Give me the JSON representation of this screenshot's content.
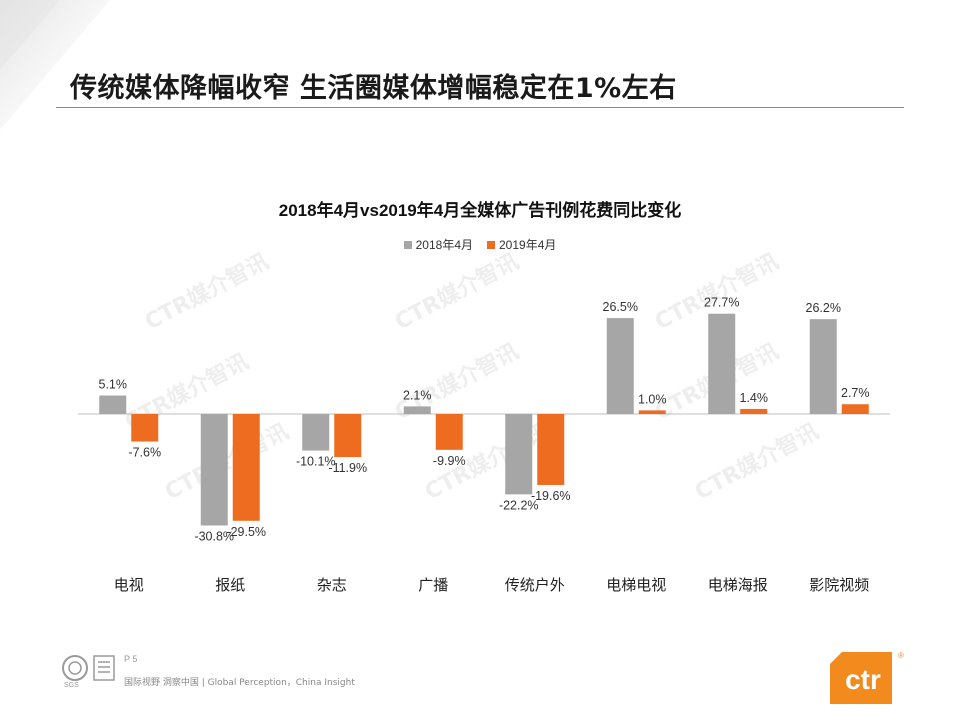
{
  "slide": {
    "title": "传统媒体降幅收窄 生活圈媒体增幅稳定在1%左右"
  },
  "footer": {
    "page": "P 5",
    "slogan": "国际视野 洞察中国 | Global Perception，China Insight",
    "logo_text": "ctr",
    "logo_mark": "®",
    "cert_text": "SGS"
  },
  "watermark": "CTR媒介智讯",
  "colors": {
    "series_2018": "#a6a6a6",
    "series_2019": "#ed6c1f",
    "brand_orange": "#f28a1e"
  },
  "chart_data": {
    "type": "bar",
    "title": "2018年4月vs2019年4月全媒体广告刊例花费同比变化",
    "categories": [
      "电视",
      "报纸",
      "杂志",
      "广播",
      "传统户外",
      "电梯电视",
      "电梯海报",
      "影院视频"
    ],
    "series": [
      {
        "name": "2018年4月",
        "values": [
          5.1,
          -30.8,
          -10.1,
          2.1,
          -22.2,
          26.5,
          27.7,
          26.2
        ],
        "labels": [
          "5.1%",
          "-30.8%",
          "-10.1%",
          "2.1%",
          "-22.2%",
          "26.5%",
          "27.7%",
          "26.2%"
        ]
      },
      {
        "name": "2019年4月",
        "values": [
          -7.6,
          -29.5,
          -11.9,
          -9.9,
          -19.6,
          1.0,
          1.4,
          2.7
        ],
        "labels": [
          "-7.6%",
          "-29.5%",
          "-11.9%",
          "-9.9%",
          "-19.6%",
          "1.0%",
          "1.4%",
          "2.7%"
        ]
      }
    ],
    "legend": "top-center",
    "grid": false
  }
}
